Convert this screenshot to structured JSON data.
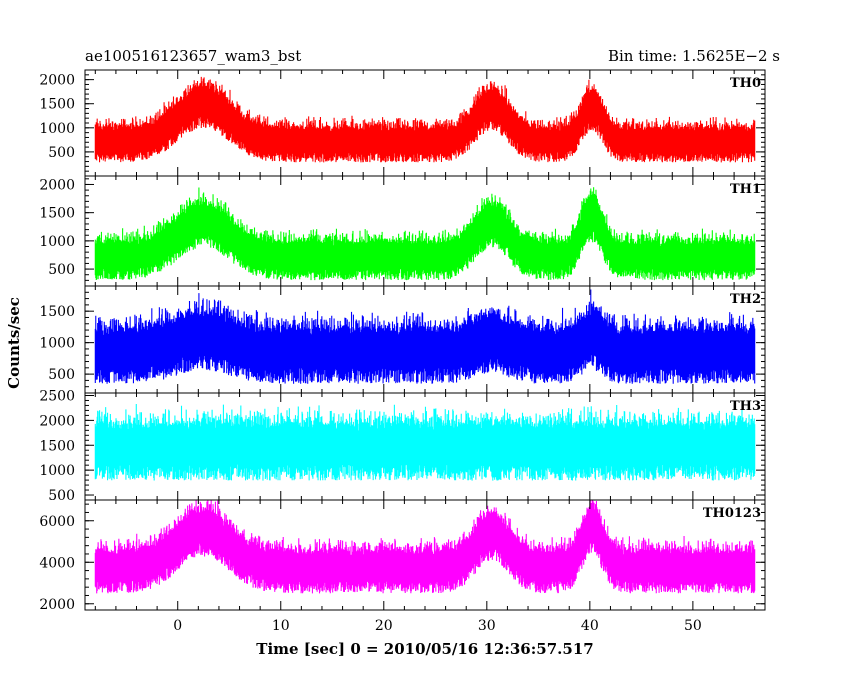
{
  "chart_data": {
    "type": "line",
    "title_left": "ae100516123657_wam3_bst",
    "title_right": "Bin time: 1.5625E−2 s",
    "xlabel": "Time [sec] 0 = 2010/05/16 12:36:57.517",
    "ylabel": "Counts/sec",
    "xlim": [
      -9,
      57
    ],
    "x_ticks": [
      0,
      10,
      20,
      30,
      40,
      50
    ],
    "x_tick_labels": [
      "0",
      "10",
      "20",
      "30",
      "40",
      "50"
    ],
    "x_data_range": [
      -8,
      56
    ],
    "bin_time_s": 0.015625,
    "panels": [
      {
        "name": "TH0",
        "color": "#ff0000",
        "ylim": [
          0,
          2200
        ],
        "y_ticks": [
          500,
          1000,
          1500,
          2000
        ],
        "y_tick_labels": [
          "500",
          "1000",
          "1500",
          "2000"
        ],
        "background_mean": 700,
        "background_spread": 350,
        "peaks": [
          {
            "x": 2.5,
            "amplitude": 800,
            "width": 2.5
          },
          {
            "x": 30.5,
            "amplitude": 750,
            "width": 1.6
          },
          {
            "x": 40.2,
            "amplitude": 750,
            "width": 1.0
          }
        ]
      },
      {
        "name": "TH1",
        "color": "#00ff00",
        "ylim": [
          200,
          2150
        ],
        "y_ticks": [
          500,
          1000,
          1500,
          2000
        ],
        "y_tick_labels": [
          "500",
          "1000",
          "1500",
          "2000"
        ],
        "background_mean": 700,
        "background_spread": 330,
        "peaks": [
          {
            "x": 2.5,
            "amplitude": 650,
            "width": 2.5
          },
          {
            "x": 30.5,
            "amplitude": 650,
            "width": 1.6
          },
          {
            "x": 40.2,
            "amplitude": 750,
            "width": 1.0
          }
        ]
      },
      {
        "name": "TH2",
        "color": "#0000ff",
        "ylim": [
          200,
          1900
        ],
        "y_ticks": [
          500,
          1000,
          1500
        ],
        "y_tick_labels": [
          "500",
          "1000",
          "1500"
        ],
        "background_mean": 850,
        "background_spread": 420,
        "peaks": [
          {
            "x": 2.5,
            "amplitude": 250,
            "width": 2.5
          },
          {
            "x": 30.5,
            "amplitude": 200,
            "width": 1.6
          },
          {
            "x": 40.2,
            "amplitude": 250,
            "width": 1.0
          }
        ]
      },
      {
        "name": "TH3",
        "color": "#00ffff",
        "ylim": [
          400,
          2550
        ],
        "y_ticks": [
          500,
          1000,
          1500,
          2000,
          2500
        ],
        "y_tick_labels": [
          "500",
          "1000",
          "1500",
          "2000",
          "2500"
        ],
        "background_mean": 1450,
        "background_spread": 550,
        "peaks": []
      },
      {
        "name": "TH0123",
        "color": "#ff00ff",
        "ylim": [
          1700,
          7000
        ],
        "y_ticks": [
          2000,
          4000,
          6000
        ],
        "y_tick_labels": [
          "2000",
          "4000",
          "6000"
        ],
        "background_mean": 3700,
        "background_spread": 1000,
        "peaks": [
          {
            "x": 2.5,
            "amplitude": 1900,
            "width": 2.5
          },
          {
            "x": 30.5,
            "amplitude": 1700,
            "width": 1.6
          },
          {
            "x": 40.2,
            "amplitude": 2000,
            "width": 1.0
          }
        ]
      }
    ]
  }
}
